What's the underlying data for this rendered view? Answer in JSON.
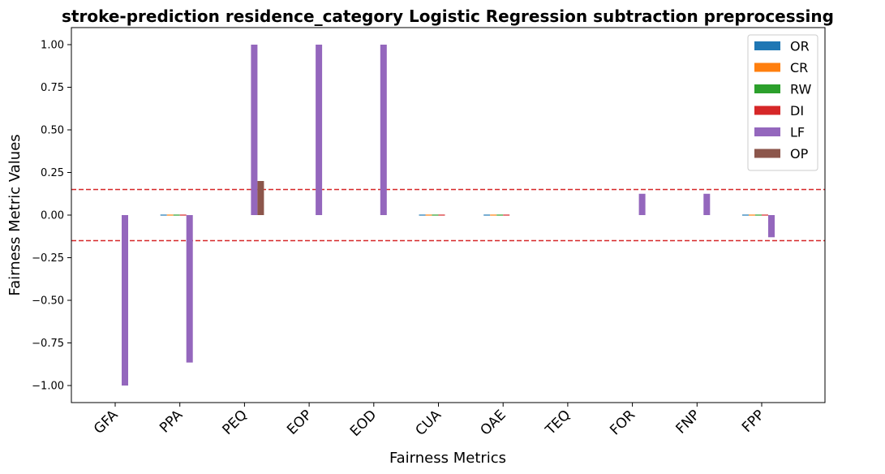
{
  "chart_data": {
    "type": "bar",
    "title": "stroke-prediction residence_category Logistic Regression subtraction preprocessing",
    "xlabel": "Fairness Metrics",
    "ylabel": "Fairness Metric Values",
    "categories": [
      "GFA",
      "PPA",
      "PEQ",
      "EOP",
      "EOD",
      "CUA",
      "OAE",
      "TEQ",
      "FOR",
      "FNP",
      "FPP"
    ],
    "ylim": [
      -1.1,
      1.1
    ],
    "yticks": [
      -1.0,
      -0.75,
      -0.5,
      -0.25,
      0.0,
      0.25,
      0.5,
      0.75,
      1.0
    ],
    "ytick_labels": [
      "−1.00",
      "−0.75",
      "−0.50",
      "−0.25",
      "0.00",
      "0.25",
      "0.50",
      "0.75",
      "1.00"
    ],
    "reference_lines": [
      0.15,
      -0.15
    ],
    "reference_line_color": "#d62728",
    "grid": false,
    "legend_position": "top-right",
    "series": [
      {
        "name": "OR",
        "color": "#1f77b4",
        "values": [
          0,
          0.003,
          0,
          0,
          0,
          -0.003,
          0.003,
          0,
          0,
          0,
          -0.003
        ]
      },
      {
        "name": "CR",
        "color": "#ff7f0e",
        "values": [
          0,
          0.003,
          0,
          0,
          0,
          -0.003,
          0.003,
          0,
          0,
          0,
          -0.003
        ]
      },
      {
        "name": "RW",
        "color": "#2ca02c",
        "values": [
          0,
          0.003,
          0,
          0,
          0,
          -0.003,
          0.003,
          0,
          0,
          0,
          -0.003
        ]
      },
      {
        "name": "DI",
        "color": "#d62728",
        "values": [
          0,
          0.003,
          0,
          0,
          0,
          -0.003,
          0.003,
          0,
          0,
          0,
          -0.003
        ]
      },
      {
        "name": "LF",
        "color": "#9467bd",
        "values": [
          -1.0,
          -0.865,
          1.0,
          1.0,
          1.0,
          0,
          0,
          0,
          0.125,
          0.125,
          -0.13
        ]
      },
      {
        "name": "OP",
        "color": "#8c564b",
        "values": [
          0,
          0,
          0.2,
          0,
          0,
          0,
          0,
          0,
          0,
          0,
          0
        ]
      }
    ]
  }
}
